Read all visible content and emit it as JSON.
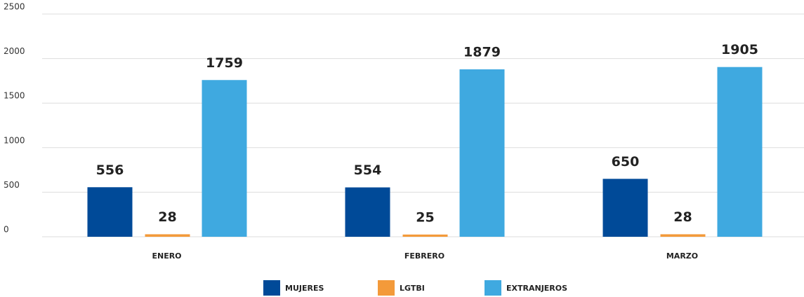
{
  "chart_data": {
    "type": "bar",
    "categories": [
      "ENERO",
      "FEBRERO",
      "MARZO"
    ],
    "series": [
      {
        "name": "MUJERES",
        "color": "#004a98",
        "values": [
          556,
          554,
          650
        ]
      },
      {
        "name": "LGTBI",
        "color": "#f39a3a",
        "values": [
          28,
          25,
          28
        ]
      },
      {
        "name": "EXTRANJEROS",
        "color": "#3fa9e0",
        "values": [
          1759,
          1879,
          1905
        ]
      }
    ],
    "ylim": [
      0,
      2500
    ],
    "yticks": [
      0,
      500,
      1000,
      1500,
      2000,
      2500
    ],
    "grid": true,
    "legend": "bottom"
  }
}
